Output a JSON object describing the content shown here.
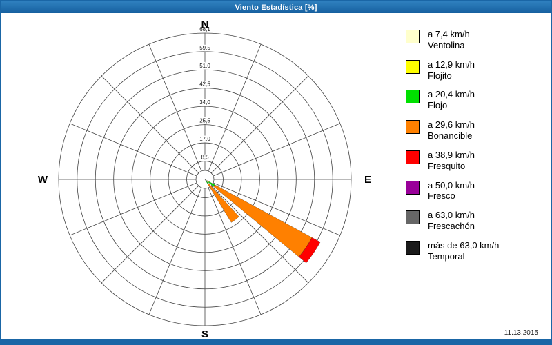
{
  "window": {
    "title": "Viento Estadística [%]",
    "date": "11.13.2015"
  },
  "chart_data": {
    "type": "windrose",
    "title": "Viento Estadística [%]",
    "units": "%",
    "max": 68.1,
    "sector_count": 16,
    "wedge_half_width_deg": 5.5,
    "ring_values": [
      8.5,
      17.0,
      25.5,
      34.0,
      42.5,
      51.0,
      59.5,
      68.1
    ],
    "ring_labels": [
      "8,5",
      "17,0",
      "25,5",
      "34,0",
      "42,5",
      "51,0",
      "59,5",
      "68,1"
    ],
    "compass": {
      "n": "N",
      "e": "E",
      "s": "S",
      "w": "W"
    },
    "grid_color": "#444444",
    "speed_bins": [
      {
        "label": "a 7,4 km/h",
        "name": "Ventolina",
        "color": "#ffffcc"
      },
      {
        "label": "a 12,9 km/h",
        "name": "Flojito",
        "color": "#ffff00"
      },
      {
        "label": "a 20,4 km/h",
        "name": "Flojo",
        "color": "#00e000"
      },
      {
        "label": "a 29,6 km/h",
        "name": "Bonancible",
        "color": "#ff8000"
      },
      {
        "label": "a 38,9 km/h",
        "name": "Fresquito",
        "color": "#ff0000"
      },
      {
        "label": "a 50,0 km/h",
        "name": "Fresco",
        "color": "#990099"
      },
      {
        "label": "a 63,0 km/h",
        "name": "Frescachón",
        "color": "#666666"
      },
      {
        "label": "más de 63,0 km/h",
        "name": "Temporal",
        "color": "#1a1a1a"
      }
    ],
    "directions": [
      {
        "center_deg": 124,
        "values": [
          1.2,
          1.0,
          3.0,
          51.5,
          4.4,
          0,
          0,
          0
        ]
      },
      {
        "center_deg": 143,
        "values": [
          0.6,
          0.5,
          1.6,
          20.8,
          0,
          0,
          0,
          0
        ]
      }
    ]
  }
}
